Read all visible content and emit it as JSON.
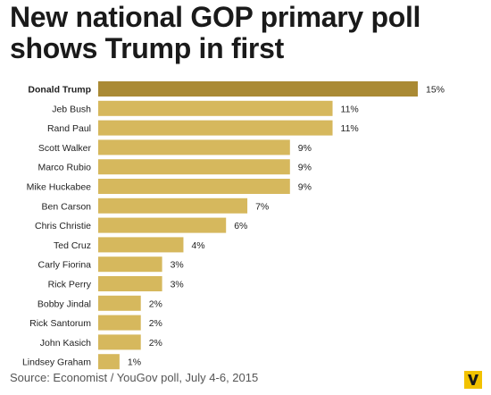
{
  "title_lines": [
    "New national GOP primary poll",
    "shows Trump in first"
  ],
  "source": "Source: Economist / YouGov poll, July 4-6, 2015",
  "colors": {
    "highlight": "#aa8a34",
    "bar": "#d6b85d",
    "logo": "#f2c200"
  },
  "logo_icon": "vox-logo-icon",
  "chart_data": {
    "type": "bar",
    "orientation": "horizontal",
    "title": "New national GOP primary poll shows Trump in first",
    "categories": [
      "Donald Trump",
      "Jeb Bush",
      "Rand Paul",
      "Scott Walker",
      "Marco Rubio",
      "Mike Huckabee",
      "Ben Carson",
      "Chris Christie",
      "Ted Cruz",
      "Carly Fiorina",
      "Rick Perry",
      "Bobby Jindal",
      "Rick Santorum",
      "John Kasich",
      "Lindsey Graham"
    ],
    "values": [
      15,
      11,
      11,
      9,
      9,
      9,
      7,
      6,
      4,
      3,
      3,
      2,
      2,
      2,
      1
    ],
    "data_labels": [
      "15%",
      "11%",
      "11%",
      "9%",
      "9%",
      "9%",
      "7%",
      "6%",
      "4%",
      "3%",
      "3%",
      "2%",
      "2%",
      "2%",
      "1%"
    ],
    "highlight": "Donald Trump",
    "xlim": [
      0,
      15
    ],
    "grid": false,
    "legend": "none"
  }
}
